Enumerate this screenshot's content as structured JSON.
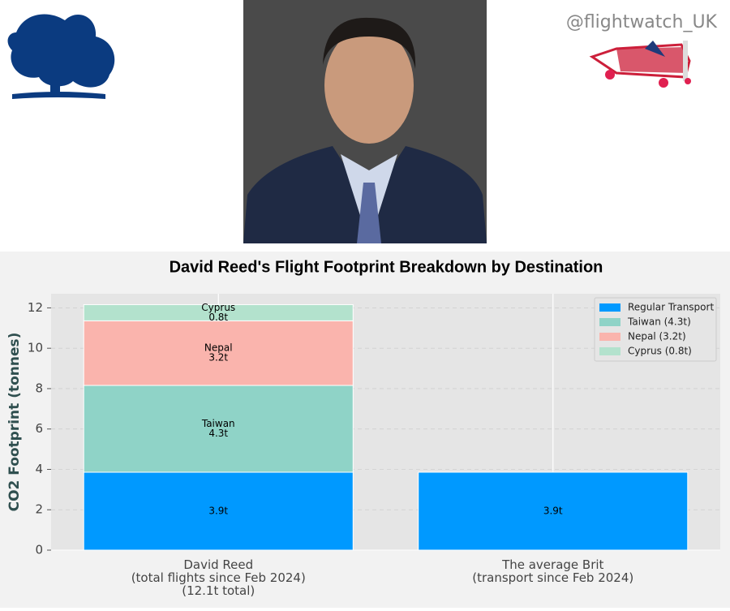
{
  "handle": "@flightwatch_UK",
  "chart_data": {
    "type": "stacked-bar",
    "title": "David Reed's Flight Footprint Breakdown by Destination",
    "y_label": "CO2 Footprint (tonnes)",
    "categories": [
      "David Reed\n(total flights since Feb 2024)\n(12.1t total)",
      "The average Brit\n(transport since Feb 2024)"
    ],
    "series": [
      {
        "name": "Regular Transport",
        "color": "#0099ff",
        "values": [
          3.86,
          3.86
        ],
        "value_labels": [
          "3.9t",
          "3.9t"
        ]
      },
      {
        "name": "Taiwan (4.3t)",
        "label": "Taiwan",
        "color": "#8fd3c7",
        "values": [
          4.3,
          null
        ],
        "value_labels": [
          "4.3t",
          null
        ]
      },
      {
        "name": "Nepal (3.2t)",
        "label": "Nepal",
        "color": "#fab4ad",
        "values": [
          3.2,
          null
        ],
        "value_labels": [
          "3.2t",
          null
        ]
      },
      {
        "name": "Cyprus (0.8t)",
        "label": "Cyprus",
        "color": "#b3e2cd",
        "values": [
          0.8,
          null
        ],
        "value_labels": [
          "0.8t",
          null
        ]
      }
    ],
    "ylim": [
      0,
      12.7
    ],
    "yticks": [
      0,
      2,
      4,
      6,
      8,
      10,
      12
    ],
    "grid": true,
    "legend": "upper right"
  }
}
